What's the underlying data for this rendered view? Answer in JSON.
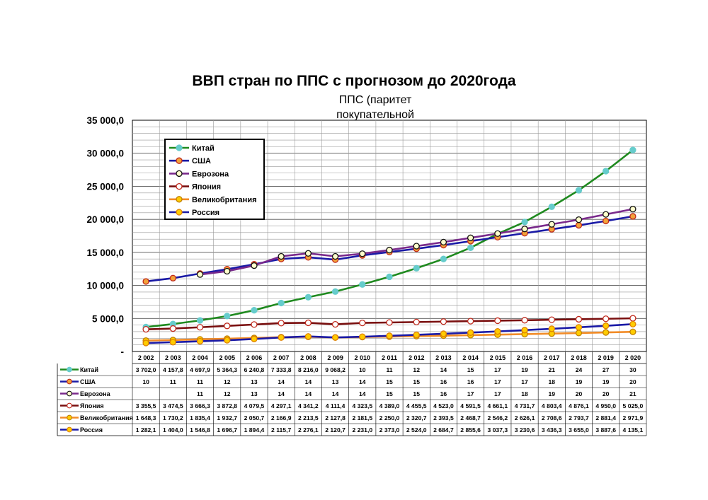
{
  "chart_data": {
    "type": "line",
    "title": "ВВП стран по ППС с прогнозом до 2020года",
    "subtitle": "ППС (паритет покупательной способности)",
    "x": [
      2002,
      2003,
      2004,
      2005,
      2006,
      2007,
      2008,
      2009,
      2010,
      2011,
      2012,
      2013,
      2014,
      2015,
      2016,
      2017,
      2018,
      2019,
      2020
    ],
    "x_labels": [
      "2 002",
      "2 003",
      "2 004",
      "2 005",
      "2 006",
      "2 007",
      "2 008",
      "2 009",
      "2 010",
      "2 011",
      "2 012",
      "2 013",
      "2 014",
      "2 015",
      "2 016",
      "2 017",
      "2 018",
      "2 019",
      "2 020"
    ],
    "y_ticks": [
      "-",
      "5 000,0",
      "10 000,0",
      "15 000,0",
      "20 000,0",
      "25 000,0",
      "30 000,0",
      "35 000,0"
    ],
    "ylim": [
      0,
      35000
    ],
    "grid": true,
    "legend_position": "top-left",
    "series": [
      {
        "name": "Китай",
        "line_color": "#1f8a1f",
        "marker_fill": "#66cccc",
        "marker_edge": "#66cccc",
        "values": [
          3702.0,
          4157.8,
          4697.9,
          5364.3,
          6240.8,
          7333.8,
          8216.0,
          9068.2,
          10150,
          11300,
          12600,
          14000,
          15700,
          17800,
          19600,
          21900,
          24400,
          27300,
          30500
        ],
        "table": [
          "3 702,0",
          "4 157,8",
          "4 697,9",
          "5 364,3",
          "6 240,8",
          "7 333,8",
          "8 216,0",
          "9 068,2",
          "10",
          "11",
          "12",
          "14",
          "15",
          "17",
          "19",
          "21",
          "24",
          "27",
          "30"
        ]
      },
      {
        "name": "США",
        "line_color": "#1a1aa6",
        "marker_fill": "#f2a33a",
        "marker_edge": "#c0291c",
        "values": [
          10600,
          11100,
          11800,
          12450,
          13200,
          14000,
          14250,
          13900,
          14550,
          15050,
          15550,
          16100,
          16700,
          17300,
          17900,
          18500,
          19100,
          19750,
          20450
        ],
        "table": [
          "10",
          "11",
          "11",
          "12",
          "13",
          "14",
          "14",
          "13",
          "14",
          "15",
          "15",
          "16",
          "16",
          "17",
          "17",
          "18",
          "19",
          "19",
          "20"
        ]
      },
      {
        "name": "Еврозона",
        "line_color": "#7a2a8c",
        "marker_fill": "#ffffcc",
        "marker_edge": "#111111",
        "values": [
          null,
          null,
          11650,
          12150,
          13000,
          14400,
          14850,
          14400,
          14800,
          15350,
          15950,
          16550,
          17200,
          17850,
          18550,
          19250,
          19950,
          20750,
          21550
        ],
        "table": [
          "",
          "",
          "11",
          "12",
          "13",
          "14",
          "14",
          "14",
          "14",
          "15",
          "15",
          "16",
          "17",
          "17",
          "18",
          "19",
          "20",
          "20",
          "21"
        ]
      },
      {
        "name": "Япония",
        "line_color": "#7a0f0f",
        "marker_fill": "#ffffff",
        "marker_edge": "#c0291c",
        "values": [
          3355.5,
          3474.5,
          3666.3,
          3872.8,
          4079.5,
          4297.1,
          4341.2,
          4111.4,
          4323.5,
          4389.0,
          4455.5,
          4523.0,
          4591.5,
          4661.1,
          4731.7,
          4803.4,
          4876.1,
          4950.0,
          5025.0
        ],
        "table": [
          "3 355,5",
          "3 474,5",
          "3 666,3",
          "3 872,8",
          "4 079,5",
          "4 297,1",
          "4 341,2",
          "4 111,4",
          "4 323,5",
          "4 389,0",
          "4 455,5",
          "4 523,0",
          "4 591,5",
          "4 661,1",
          "4 731,7",
          "4 803,4",
          "4 876,1",
          "4 950,0",
          "5 025,0"
        ]
      },
      {
        "name": "Великобритания",
        "line_color": "#f28c28",
        "marker_fill": "#ffcc00",
        "marker_edge": "#c08000",
        "values": [
          1648.3,
          1730.2,
          1835.4,
          1932.7,
          2050.7,
          2166.9,
          2213.5,
          2127.8,
          2181.5,
          2250.0,
          2320.7,
          2393.5,
          2468.7,
          2546.2,
          2626.1,
          2708.6,
          2793.7,
          2881.4,
          2971.9
        ],
        "table": [
          "1 648,3",
          "1 730,2",
          "1 835,4",
          "1 932,7",
          "2 050,7",
          "2 166,9",
          "2 213,5",
          "2 127,8",
          "2 181,5",
          "2 250,0",
          "2 320,7",
          "2 393,5",
          "2 468,7",
          "2 546,2",
          "2 626,1",
          "2 708,6",
          "2 793,7",
          "2 881,4",
          "2 971,9"
        ]
      },
      {
        "name": "Россия",
        "line_color": "#1a1aa6",
        "marker_fill": "#ffcc00",
        "marker_edge": "#e08000",
        "values": [
          1282.1,
          1404.0,
          1546.8,
          1696.7,
          1894.4,
          2115.7,
          2276.1,
          2120.7,
          2231.0,
          2373.0,
          2524.0,
          2684.7,
          2855.6,
          3037.3,
          3230.6,
          3436.3,
          3655.0,
          3887.6,
          4135.1
        ],
        "table": [
          "1 282,1",
          "1 404,0",
          "1 546,8",
          "1 696,7",
          "1 894,4",
          "2 115,7",
          "2 276,1",
          "2 120,7",
          "2 231,0",
          "2 373,0",
          "2 524,0",
          "2 684,7",
          "2 855,6",
          "3 037,3",
          "3 230,6",
          "3 436,3",
          "3 655,0",
          "3 887,6",
          "4 135,1"
        ]
      }
    ]
  }
}
